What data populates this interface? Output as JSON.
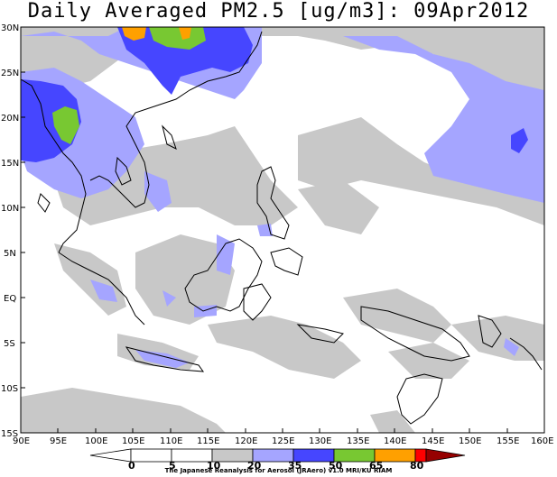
{
  "title": "Daily Averaged PM2.5 [ug/m3]: 09Apr2012",
  "map": {
    "lat_labels": [
      "30N",
      "25N",
      "20N",
      "15N",
      "10N",
      "5N",
      "EQ",
      "5S",
      "10S",
      "15S"
    ],
    "lon_labels": [
      "90E",
      "95E",
      "100E",
      "105E",
      "110E",
      "115E",
      "120E",
      "125E",
      "130E",
      "135E",
      "140E",
      "145E",
      "150E",
      "155E",
      "160E"
    ],
    "extent": {
      "lon": [
        90,
        160
      ],
      "lat": [
        -15,
        30
      ]
    }
  },
  "colorbar": {
    "ticks": [
      "0",
      "5",
      "10",
      "20",
      "35",
      "50",
      "65",
      "80"
    ],
    "colors": [
      "#ffffff",
      "#ffffff",
      "#c8c8c8",
      "#a5a5ff",
      "#4646ff",
      "#78c832",
      "#ffa000",
      "#ff0000",
      "#960000"
    ]
  },
  "credit": "The Japanese Reanalysis for Aerosol (JRAero) v1.0 MRI/KU RIAM"
}
